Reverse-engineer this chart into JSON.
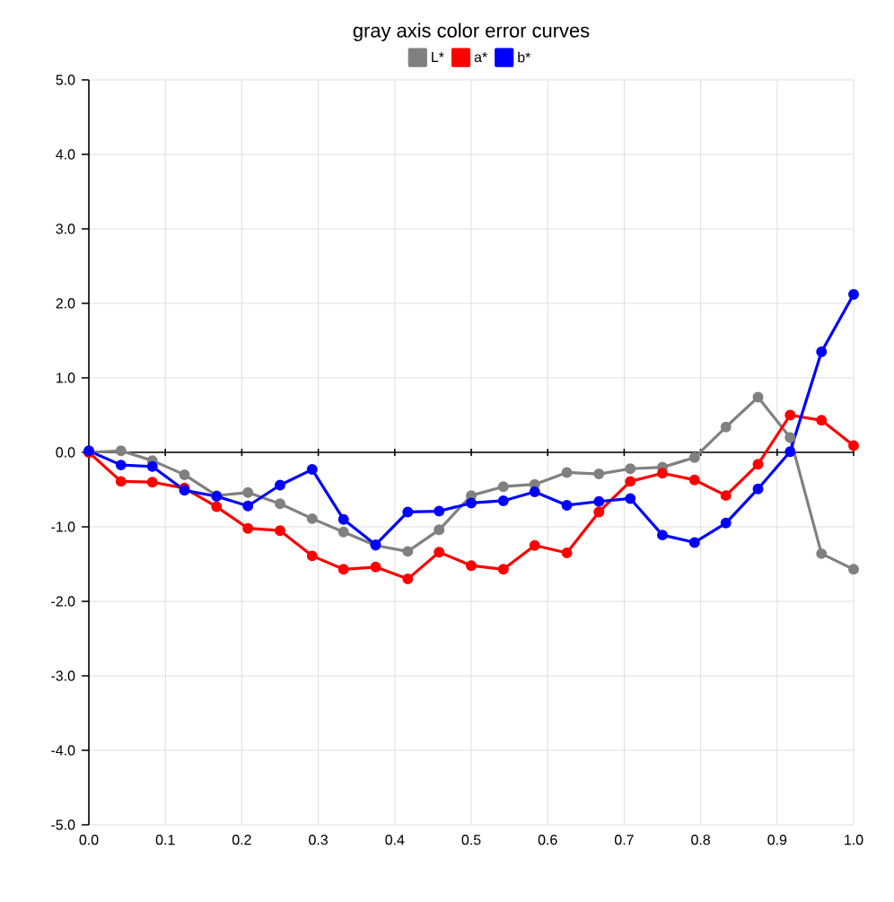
{
  "chart_data": {
    "type": "line",
    "title": "gray axis color error curves",
    "x": [
      0,
      0.042,
      0.083,
      0.125,
      0.167,
      0.208,
      0.25,
      0.292,
      0.333,
      0.375,
      0.417,
      0.458,
      0.5,
      0.542,
      0.583,
      0.625,
      0.667,
      0.708,
      0.75,
      0.792,
      0.833,
      0.875,
      0.917,
      0.958,
      1.0
    ],
    "series": [
      {
        "name": "L*",
        "color": "#808080",
        "values": [
          0,
          0.02,
          -0.11,
          -0.3,
          -0.58,
          -0.54,
          -0.69,
          -0.89,
          -1.07,
          -1.25,
          -1.33,
          -1.04,
          -0.58,
          -0.46,
          -0.43,
          -0.27,
          -0.29,
          -0.22,
          -0.2,
          -0.07,
          0.34,
          0.74,
          0.2,
          -1.36,
          -1.57
        ]
      },
      {
        "name": "a*",
        "color": "#ff0000",
        "values": [
          0,
          -0.39,
          -0.4,
          -0.48,
          -0.73,
          -1.02,
          -1.05,
          -1.39,
          -1.57,
          -1.54,
          -1.7,
          -1.34,
          -1.52,
          -1.57,
          -1.25,
          -1.35,
          -0.8,
          -0.39,
          -0.28,
          -0.37,
          -0.58,
          -0.16,
          0.5,
          0.43,
          0.09
        ]
      },
      {
        "name": "b*",
        "color": "#0000ff",
        "values": [
          0.02,
          -0.17,
          -0.19,
          -0.51,
          -0.59,
          -0.72,
          -0.44,
          -0.23,
          -0.9,
          -1.24,
          -0.8,
          -0.79,
          -0.68,
          -0.65,
          -0.53,
          -0.71,
          -0.66,
          -0.62,
          -1.11,
          -1.21,
          -0.95,
          -0.49,
          0.01,
          1.35,
          2.12
        ]
      }
    ],
    "xlim": [
      0,
      1.0
    ],
    "xticks": [
      {
        "value": 0,
        "label": "0.0"
      },
      0.1,
      0.2,
      0.3,
      0.4,
      0.5,
      0.6,
      0.7,
      0.8,
      0.9,
      {
        "value": 1.0,
        "label": "1.0"
      }
    ],
    "ylim": [
      -5,
      5
    ],
    "yticks": [
      {
        "value": -5,
        "label": "-5.0"
      },
      {
        "value": -4,
        "label": "-4.0"
      },
      {
        "value": -3,
        "label": "-3.0"
      },
      {
        "value": -2,
        "label": "-2.0"
      },
      {
        "value": -1,
        "label": "-1.0"
      },
      {
        "value": 0,
        "label": "0.0"
      },
      {
        "value": 1,
        "label": "1.0"
      },
      {
        "value": 2,
        "label": "2.0"
      },
      {
        "value": 3,
        "label": "3.0"
      },
      {
        "value": 4,
        "label": "4.0"
      },
      {
        "value": 5,
        "label": "5.0"
      }
    ],
    "grid": true,
    "legend": "top",
    "marker": "circle",
    "line_style": "solid"
  }
}
